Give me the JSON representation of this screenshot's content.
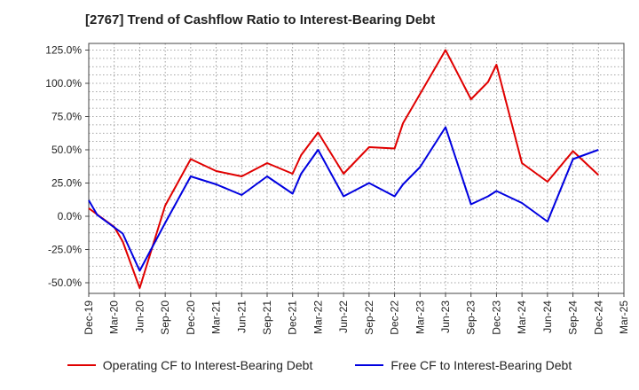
{
  "chart_data": {
    "type": "line",
    "title": "[2767]  Trend of Cashflow Ratio to Interest-Bearing Debt",
    "x_tick_labels": [
      "Dec-19",
      "Mar-20",
      "Jun-20",
      "Sep-20",
      "Dec-20",
      "Mar-21",
      "Jun-21",
      "Sep-21",
      "Dec-21",
      "Mar-22",
      "Jun-22",
      "Sep-22",
      "Dec-22",
      "Mar-23",
      "Jun-23",
      "Sep-23",
      "Dec-23",
      "Mar-24",
      "Jun-24",
      "Sep-24",
      "Dec-24",
      "Mar-25"
    ],
    "y_tick_labels": [
      "125.0%",
      "100.0%",
      "75.0%",
      "50.0%",
      "25.0%",
      "0.0%",
      "-25.0%",
      "-50.0%"
    ],
    "y_ticks": [
      125,
      100,
      75,
      50,
      25,
      0,
      -25,
      -50
    ],
    "ylim": [
      -58,
      130
    ],
    "grid": true,
    "legend_position": "bottom",
    "series": [
      {
        "name": "Operating CF to Interest-Bearing Debt",
        "color": "#e00000",
        "points": [
          [
            "Dec-19",
            6
          ],
          [
            "Mar-20",
            -8
          ],
          [
            "Apr-20",
            -19
          ],
          [
            "Jun-20",
            -54
          ],
          [
            "Sep-20",
            8
          ],
          [
            "Dec-20",
            43
          ],
          [
            "Mar-21",
            34
          ],
          [
            "Jun-21",
            30
          ],
          [
            "Sep-21",
            40
          ],
          [
            "Dec-21",
            32
          ],
          [
            "Jan-22",
            46
          ],
          [
            "Mar-22",
            63
          ],
          [
            "Jun-22",
            32
          ],
          [
            "Sep-22",
            52
          ],
          [
            "Dec-22",
            51
          ],
          [
            "Jan-23",
            70
          ],
          [
            "Mar-23",
            92
          ],
          [
            "Jun-23",
            125
          ],
          [
            "Sep-23",
            88
          ],
          [
            "Nov-23",
            101
          ],
          [
            "Dec-23",
            114
          ],
          [
            "Mar-24",
            40
          ],
          [
            "Jun-24",
            26
          ],
          [
            "Sep-24",
            49
          ],
          [
            "Dec-24",
            31
          ]
        ]
      },
      {
        "name": "Free CF to Interest-Bearing Debt",
        "color": "#0000e0",
        "points": [
          [
            "Dec-19",
            12
          ],
          [
            "Jan-20",
            1
          ],
          [
            "Apr-20",
            -13
          ],
          [
            "Jun-20",
            -41
          ],
          [
            "Sep-20",
            -5
          ],
          [
            "Dec-20",
            30
          ],
          [
            "Mar-21",
            24
          ],
          [
            "Jun-21",
            16
          ],
          [
            "Sep-21",
            30
          ],
          [
            "Dec-21",
            17
          ],
          [
            "Jan-22",
            32
          ],
          [
            "Mar-22",
            50
          ],
          [
            "Jun-22",
            15
          ],
          [
            "Sep-22",
            25
          ],
          [
            "Dec-22",
            15
          ],
          [
            "Jan-23",
            24
          ],
          [
            "Mar-23",
            37
          ],
          [
            "Jun-23",
            67
          ],
          [
            "Sep-23",
            9
          ],
          [
            "Nov-23",
            15
          ],
          [
            "Dec-23",
            19
          ],
          [
            "Mar-24",
            10
          ],
          [
            "Jun-24",
            -4
          ],
          [
            "Sep-24",
            43
          ],
          [
            "Dec-24",
            50
          ]
        ]
      }
    ]
  }
}
